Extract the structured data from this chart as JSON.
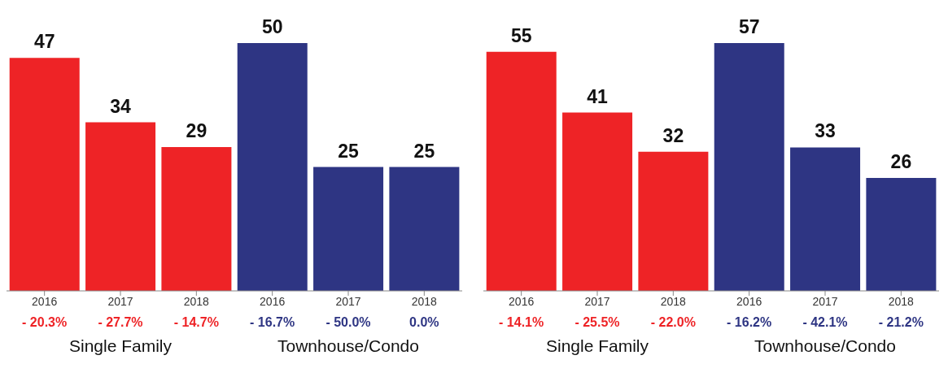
{
  "chart_data": [
    {
      "type": "bar",
      "categories": [
        "2016",
        "2017",
        "2018",
        "2016",
        "2017",
        "2018"
      ],
      "values": [
        47,
        34,
        29,
        50,
        25,
        25
      ],
      "colors": [
        "#ee2326",
        "#ee2326",
        "#ee2326",
        "#2e3583",
        "#2e3583",
        "#2e3583"
      ],
      "data_labels": true,
      "annotations": [
        "- 20.3%",
        "- 27.7%",
        "- 14.7%",
        "- 16.7%",
        "- 50.0%",
        "0.0%",
        "Single Family",
        "Townhouse/Condo"
      ]
    },
    {
      "type": "bar",
      "categories": [
        "2016",
        "2017",
        "2018",
        "2016",
        "2017",
        "2018"
      ],
      "values": [
        55,
        41,
        32,
        57,
        33,
        26
      ],
      "colors": [
        "#ee2326",
        "#ee2326",
        "#ee2326",
        "#2e3583",
        "#2e3583",
        "#2e3583"
      ],
      "data_labels": true,
      "annotations": [
        "- 14.1%",
        "- 25.5%",
        "- 22.0%",
        "- 16.2%",
        "- 42.1%",
        "- 21.2%",
        "Single Family",
        "Townhouse/Condo"
      ]
    }
  ]
}
